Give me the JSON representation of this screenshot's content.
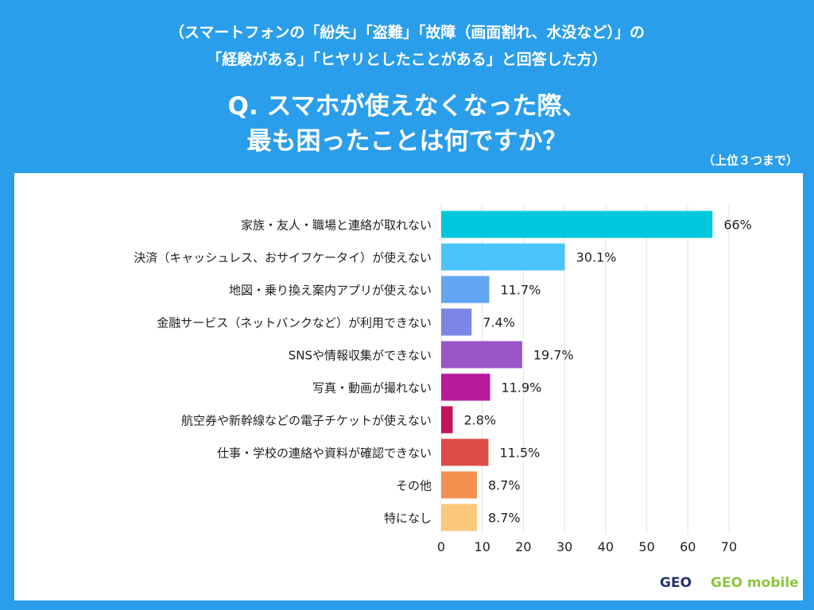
{
  "header": {
    "line1": "（スマートフォンの「紛失」「盗難」「故障（画面割れ、水没など）」の",
    "line2": "「経験がある」「ヒヤリとしたことがある」と回答した方）",
    "question1": "Q. スマホが使えなくなった際、",
    "question2": "最も困ったことは何ですか？",
    "note": "（上位３つまで）"
  },
  "chart_data": {
    "type": "bar",
    "orientation": "horizontal",
    "categories": [
      "家族・友人・職場と連絡が取れない",
      "決済（キャッシュレス、おサイフケータイ）が使えない",
      "地図・乗り換え案内アプリが使えない",
      "金融サービス（ネットバンクなど）が利用できない",
      "SNSや情報収集ができない",
      "写真・動画が撮れない",
      "航空券や新幹線などの電子チケットが使えない",
      "仕事・学校の連絡や資料が確認できない",
      "その他",
      "特になし"
    ],
    "values": [
      66,
      30.1,
      11.7,
      7.4,
      19.7,
      11.9,
      2.8,
      11.5,
      8.7,
      8.7
    ],
    "labels": [
      "66%",
      "30.1%",
      "11.7%",
      "7.4%",
      "19.7%",
      "11.9%",
      "2.8%",
      "11.5%",
      "8.7%",
      "8.7%"
    ],
    "colors": [
      "#00c8dc",
      "#4cc4fb",
      "#63a6f4",
      "#7b86e6",
      "#9a55c8",
      "#b81a9c",
      "#c61458",
      "#dc4b45",
      "#f59150",
      "#fcc87a"
    ],
    "xlim": [
      0,
      70
    ],
    "xticks": [
      0,
      10,
      20,
      30,
      40,
      50,
      60,
      70
    ],
    "grid": true
  },
  "logos": {
    "geo": "GEO",
    "geo_mobile": "GEO mobile"
  }
}
